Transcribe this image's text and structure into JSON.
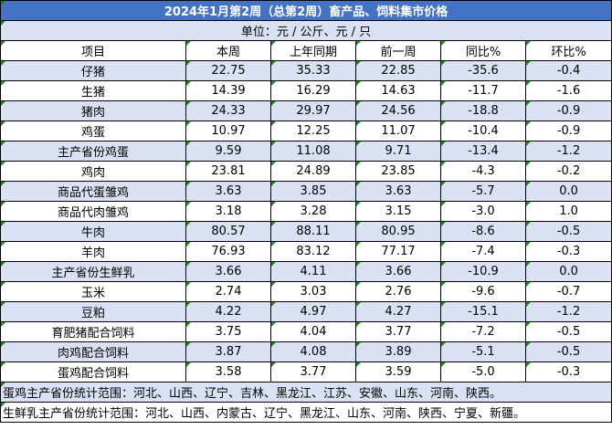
{
  "title": "2024年1月第2周（总第2周）畜产品、饲料集市价格",
  "unit": "单位：元 / 公斤、元 / 只",
  "columns": [
    "项目",
    "本周",
    "上年同期",
    "前一周",
    "同比%",
    "环比%"
  ],
  "rows": [
    {
      "item": "仔猪",
      "this_week": "22.75",
      "last_year": "35.33",
      "prev_week": "22.85",
      "yoy": "-35.6",
      "wow": "-0.4"
    },
    {
      "item": "生猪",
      "this_week": "14.39",
      "last_year": "16.29",
      "prev_week": "14.63",
      "yoy": "-11.7",
      "wow": "-1.6"
    },
    {
      "item": "猪肉",
      "this_week": "24.33",
      "last_year": "29.97",
      "prev_week": "24.56",
      "yoy": "-18.8",
      "wow": "-0.9"
    },
    {
      "item": "鸡蛋",
      "this_week": "10.97",
      "last_year": "12.25",
      "prev_week": "11.07",
      "yoy": "-10.4",
      "wow": "-0.9"
    },
    {
      "item": "主产省份鸡蛋",
      "this_week": "9.59",
      "last_year": "11.08",
      "prev_week": "9.71",
      "yoy": "-13.4",
      "wow": "-1.2"
    },
    {
      "item": "鸡肉",
      "this_week": "23.81",
      "last_year": "24.89",
      "prev_week": "23.85",
      "yoy": "-4.3",
      "wow": "-0.2"
    },
    {
      "item": "商品代蛋雏鸡",
      "this_week": "3.63",
      "last_year": "3.85",
      "prev_week": "3.63",
      "yoy": "-5.7",
      "wow": "0.0"
    },
    {
      "item": "商品代肉雏鸡",
      "this_week": "3.18",
      "last_year": "3.28",
      "prev_week": "3.15",
      "yoy": "-3.0",
      "wow": "1.0"
    },
    {
      "item": "牛肉",
      "this_week": "80.57",
      "last_year": "88.11",
      "prev_week": "80.95",
      "yoy": "-8.6",
      "wow": "-0.5"
    },
    {
      "item": "羊肉",
      "this_week": "76.93",
      "last_year": "83.12",
      "prev_week": "77.17",
      "yoy": "-7.4",
      "wow": "-0.3"
    },
    {
      "item": "主产省份生鲜乳",
      "this_week": "3.66",
      "last_year": "4.11",
      "prev_week": "3.66",
      "yoy": "-10.9",
      "wow": "0.0"
    },
    {
      "item": "玉米",
      "this_week": "2.74",
      "last_year": "3.03",
      "prev_week": "2.76",
      "yoy": "-9.6",
      "wow": "-0.7"
    },
    {
      "item": "豆粕",
      "this_week": "4.22",
      "last_year": "4.97",
      "prev_week": "4.27",
      "yoy": "-15.1",
      "wow": "-1.2"
    },
    {
      "item": "育肥猪配合饲料",
      "this_week": "3.75",
      "last_year": "4.04",
      "prev_week": "3.77",
      "yoy": "-7.2",
      "wow": "-0.5"
    },
    {
      "item": "肉鸡配合饲料",
      "this_week": "3.87",
      "last_year": "4.08",
      "prev_week": "3.89",
      "yoy": "-5.1",
      "wow": "-0.5"
    },
    {
      "item": "蛋鸡配合饲料",
      "this_week": "3.58",
      "last_year": "3.77",
      "prev_week": "3.59",
      "yoy": "-5.0",
      "wow": "-0.3"
    }
  ],
  "notes": [
    "蛋鸡主产省份统计范围：河北、山西、辽宁、吉林、黑龙江、江苏、安徽、山东、河南、陕西。",
    "生鲜乳主产省份统计范围：河北、山西、内蒙古、辽宁、黑龙江、山东、河南、陕西、宁夏、新疆。"
  ],
  "colors": {
    "title_bg": "#4472c4",
    "band_bg": "#d9e1f2",
    "white_bg": "#ffffff",
    "comment_marker": "#1a8a1a"
  }
}
